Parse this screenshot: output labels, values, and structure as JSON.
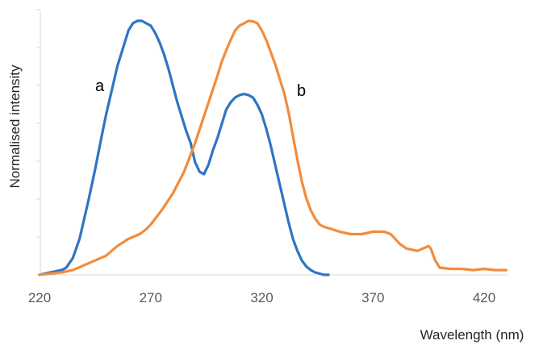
{
  "chart_data": {
    "type": "line",
    "xlabel": "Wavelength (nm)",
    "ylabel": "Normalised intensity",
    "xlim": [
      220,
      430
    ],
    "ylim": [
      0,
      1.1
    ],
    "x_ticks": [
      "220",
      "270",
      "320",
      "370",
      "420"
    ],
    "grid": false,
    "legend": "none",
    "series": [
      {
        "name": "a",
        "color": "#2e75c4",
        "x": [
          220,
          225,
          230,
          232,
          235,
          238,
          240,
          242,
          245,
          248,
          250,
          253,
          255,
          258,
          260,
          262,
          264,
          265,
          266,
          268,
          270,
          272,
          274,
          276,
          278,
          280,
          282,
          284,
          286,
          288,
          290,
          292,
          294,
          296,
          298,
          300,
          302,
          304,
          306,
          308,
          310,
          312,
          314,
          316,
          318,
          320,
          322,
          324,
          326,
          328,
          330,
          332,
          334,
          336,
          338,
          340,
          342,
          344,
          346,
          348,
          350
        ],
        "y": [
          0.0,
          0.01,
          0.02,
          0.03,
          0.07,
          0.15,
          0.23,
          0.31,
          0.44,
          0.58,
          0.67,
          0.79,
          0.87,
          0.96,
          1.02,
          1.05,
          1.06,
          1.06,
          1.06,
          1.05,
          1.04,
          1.01,
          0.97,
          0.92,
          0.86,
          0.79,
          0.72,
          0.66,
          0.6,
          0.55,
          0.47,
          0.43,
          0.42,
          0.46,
          0.52,
          0.57,
          0.63,
          0.69,
          0.72,
          0.74,
          0.75,
          0.755,
          0.75,
          0.74,
          0.71,
          0.67,
          0.61,
          0.54,
          0.46,
          0.38,
          0.3,
          0.22,
          0.15,
          0.1,
          0.06,
          0.035,
          0.02,
          0.01,
          0.005,
          0.0,
          0.0
        ]
      },
      {
        "name": "b",
        "color": "#f28c3c",
        "x": [
          220,
          225,
          230,
          235,
          240,
          245,
          250,
          255,
          260,
          265,
          268,
          270,
          275,
          280,
          285,
          290,
          295,
          300,
          302,
          305,
          308,
          310,
          312,
          314,
          316,
          318,
          320,
          322,
          324,
          326,
          328,
          330,
          332,
          334,
          336,
          338,
          340,
          342,
          344,
          346,
          348,
          350,
          355,
          360,
          365,
          370,
          375,
          378,
          380,
          382,
          385,
          390,
          395,
          396,
          398,
          400,
          405,
          410,
          415,
          420,
          425,
          430
        ],
        "y": [
          0.0,
          0.005,
          0.01,
          0.02,
          0.04,
          0.06,
          0.08,
          0.12,
          0.15,
          0.17,
          0.19,
          0.21,
          0.27,
          0.34,
          0.43,
          0.55,
          0.69,
          0.83,
          0.89,
          0.96,
          1.02,
          1.04,
          1.05,
          1.06,
          1.058,
          1.05,
          1.02,
          0.98,
          0.93,
          0.88,
          0.82,
          0.76,
          0.68,
          0.58,
          0.48,
          0.39,
          0.32,
          0.27,
          0.235,
          0.21,
          0.2,
          0.195,
          0.18,
          0.17,
          0.17,
          0.18,
          0.18,
          0.17,
          0.15,
          0.13,
          0.11,
          0.1,
          0.12,
          0.11,
          0.06,
          0.03,
          0.025,
          0.025,
          0.02,
          0.025,
          0.02,
          0.02
        ]
      }
    ]
  }
}
